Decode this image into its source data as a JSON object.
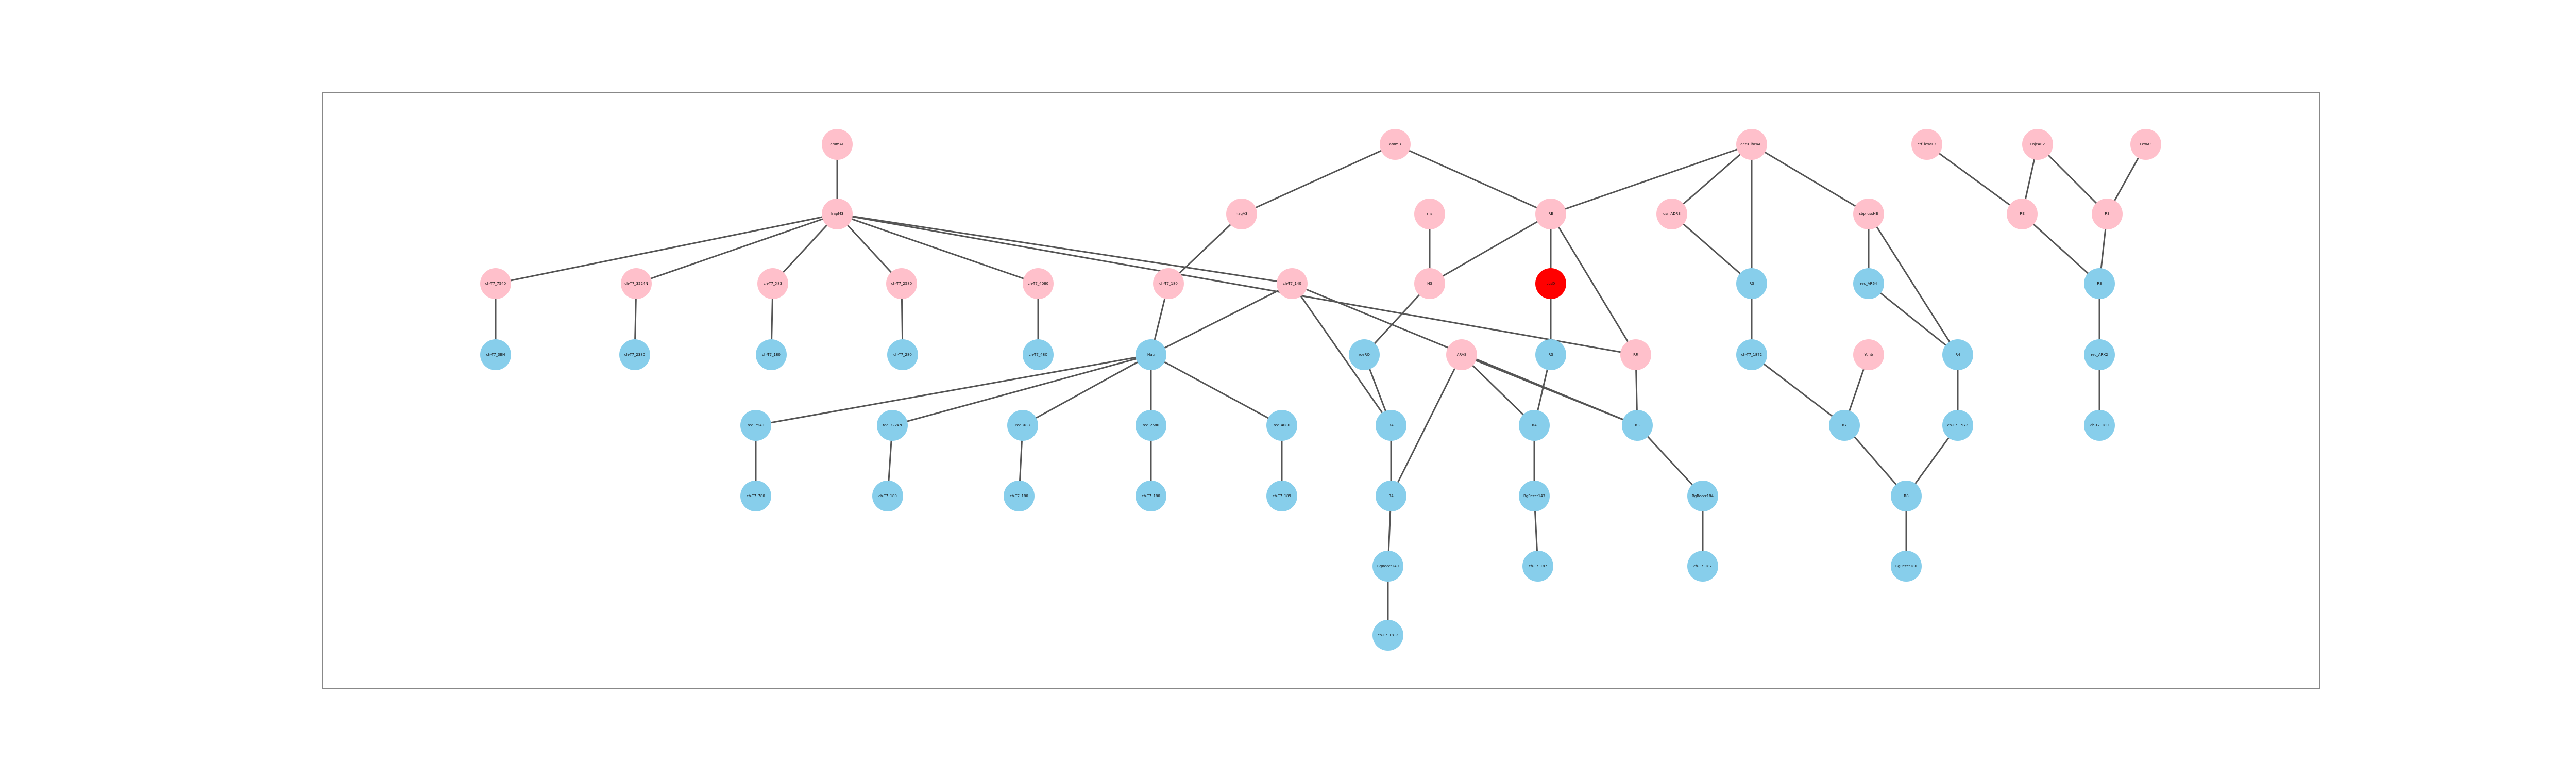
{
  "colors": {
    "background": "#ffffff",
    "frame": "#888888",
    "edge": "#555555",
    "pink": "#ffc0cb",
    "blue": "#87ceeb",
    "red": "#ff0000"
  },
  "graph": {
    "nodes": [
      {
        "id": "n_top_left",
        "label": "ammAE",
        "color": "pink"
      },
      {
        "id": "n_hub_left",
        "label": "lrapM3",
        "color": "pink"
      },
      {
        "id": "n_top_mid",
        "label": "ammB",
        "color": "pink"
      },
      {
        "id": "n_top_right",
        "label": "aerB_lhcaAE",
        "color": "pink"
      },
      {
        "id": "n_top_r1",
        "label": "crf_lexaE3",
        "color": "pink"
      },
      {
        "id": "n_top_r2",
        "label": "FnjcAR2",
        "color": "pink"
      },
      {
        "id": "n_top_r3",
        "label": "LexM3",
        "color": "pink"
      },
      {
        "id": "n_r2_hag",
        "label": "hagA3",
        "color": "pink"
      },
      {
        "id": "n_r2_rhs",
        "label": "rhs",
        "color": "pink"
      },
      {
        "id": "n_r2_re",
        "label": "RE",
        "color": "pink"
      },
      {
        "id": "n_r2_csgd",
        "label": "osr_ADR3",
        "color": "pink"
      },
      {
        "id": "n_r2_sbp",
        "label": "sbp_cssHB",
        "color": "pink"
      },
      {
        "id": "n_r2_r1",
        "label": "RE",
        "color": "pink"
      },
      {
        "id": "n_r2_r2",
        "label": "R3",
        "color": "pink"
      },
      {
        "id": "n_r3_a",
        "label": "ch-T7_7540",
        "color": "pink"
      },
      {
        "id": "n_r3_b",
        "label": "ch-T7_3224N",
        "color": "pink"
      },
      {
        "id": "n_r3_c",
        "label": "ch-T7_X83",
        "color": "pink"
      },
      {
        "id": "n_r3_d",
        "label": "ch-T7_2580",
        "color": "pink"
      },
      {
        "id": "n_r3_e",
        "label": "ch-T7_4080",
        "color": "pink"
      },
      {
        "id": "n_r3_f",
        "label": "ch-T7_180",
        "color": "pink"
      },
      {
        "id": "n_r3_g",
        "label": "ch-T7_140",
        "color": "pink"
      },
      {
        "id": "n_r3_h",
        "label": "H3",
        "color": "pink"
      },
      {
        "id": "n_r3_red",
        "label": "ccsD",
        "color": "red"
      },
      {
        "id": "n_r3_k",
        "label": "R3",
        "color": "blue"
      },
      {
        "id": "n_r3_l",
        "label": "rec_AR64",
        "color": "blue"
      },
      {
        "id": "n_r3_m",
        "label": "R3",
        "color": "blue"
      },
      {
        "id": "n_r4_a",
        "label": "ch-T7_3EN",
        "color": "blue"
      },
      {
        "id": "n_r4_b",
        "label": "ch-T7_2380",
        "color": "blue"
      },
      {
        "id": "n_r4_c",
        "label": "ch-T7_180",
        "color": "blue"
      },
      {
        "id": "n_r4_d",
        "label": "ch-T7_280",
        "color": "blue"
      },
      {
        "id": "n_r4_e",
        "label": "ch-T7_48C",
        "color": "blue"
      },
      {
        "id": "n_r4_hub",
        "label": "Hau",
        "color": "blue"
      },
      {
        "id": "n_r4_g",
        "label": "roeRO",
        "color": "blue"
      },
      {
        "id": "n_r4_h",
        "label": "ARAS",
        "color": "pink"
      },
      {
        "id": "n_r4_i",
        "label": "R3",
        "color": "blue"
      },
      {
        "id": "n_r4_j",
        "label": "RR",
        "color": "pink"
      },
      {
        "id": "n_r4_k",
        "label": "ch-T7_1872",
        "color": "blue"
      },
      {
        "id": "n_r4_l",
        "label": "Yuhb",
        "color": "pink"
      },
      {
        "id": "n_r4_m",
        "label": "R4",
        "color": "blue"
      },
      {
        "id": "n_r4_n",
        "label": "rec_ARX2",
        "color": "blue"
      },
      {
        "id": "n_r5_a",
        "label": "rec_7540",
        "color": "blue"
      },
      {
        "id": "n_r5_b",
        "label": "rec_3224N",
        "color": "blue"
      },
      {
        "id": "n_r5_c",
        "label": "rec_X83",
        "color": "blue"
      },
      {
        "id": "n_r5_d",
        "label": "rec_2580",
        "color": "blue"
      },
      {
        "id": "n_r5_e",
        "label": "rec_4080",
        "color": "blue"
      },
      {
        "id": "n_r5_f",
        "label": "R4",
        "color": "blue"
      },
      {
        "id": "n_r5_g",
        "label": "R4",
        "color": "blue"
      },
      {
        "id": "n_r5_h",
        "label": "R3",
        "color": "blue"
      },
      {
        "id": "n_r5_i",
        "label": "R7",
        "color": "blue"
      },
      {
        "id": "n_r5_j",
        "label": "ch-T7_1972",
        "color": "blue"
      },
      {
        "id": "n_r5_k",
        "label": "ch-T7_180",
        "color": "blue"
      },
      {
        "id": "n_r6_a",
        "label": "ch-T7_780",
        "color": "blue"
      },
      {
        "id": "n_r6_b",
        "label": "ch-T7_180",
        "color": "blue"
      },
      {
        "id": "n_r6_c",
        "label": "ch-T7_180",
        "color": "blue"
      },
      {
        "id": "n_r6_d",
        "label": "ch-T7_180",
        "color": "blue"
      },
      {
        "id": "n_r6_e",
        "label": "ch-T7_189",
        "color": "blue"
      },
      {
        "id": "n_r6_f",
        "label": "R4",
        "color": "blue"
      },
      {
        "id": "n_r6_g",
        "label": "BgReccr143",
        "color": "blue"
      },
      {
        "id": "n_r6_h",
        "label": "BgReccr184",
        "color": "blue"
      },
      {
        "id": "n_r6_i",
        "label": "R8",
        "color": "blue"
      },
      {
        "id": "n_r7_a",
        "label": "BgReccr140",
        "color": "blue"
      },
      {
        "id": "n_r7_b",
        "label": "ch-T7_187",
        "color": "blue"
      },
      {
        "id": "n_r7_c",
        "label": "ch-T7_187",
        "color": "blue"
      },
      {
        "id": "n_r7_d",
        "label": "BgReccr180",
        "color": "blue"
      },
      {
        "id": "n_r8_a",
        "label": "ch-T7_1812",
        "color": "blue"
      }
    ],
    "edges": [
      [
        "n_top_left",
        "n_hub_left"
      ],
      [
        "n_hub_left",
        "n_r3_a"
      ],
      [
        "n_hub_left",
        "n_r3_b"
      ],
      [
        "n_hub_left",
        "n_r3_c"
      ],
      [
        "n_hub_left",
        "n_r3_d"
      ],
      [
        "n_hub_left",
        "n_r3_e"
      ],
      [
        "n_hub_left",
        "n_r3_g"
      ],
      [
        "n_hub_left",
        "n_r4_j"
      ],
      [
        "n_r3_a",
        "n_r4_a"
      ],
      [
        "n_r3_b",
        "n_r4_b"
      ],
      [
        "n_r3_c",
        "n_r4_c"
      ],
      [
        "n_r3_d",
        "n_r4_d"
      ],
      [
        "n_r3_e",
        "n_r4_e"
      ],
      [
        "n_top_mid",
        "n_r2_hag"
      ],
      [
        "n_top_mid",
        "n_r2_re"
      ],
      [
        "n_r2_hag",
        "n_r3_f"
      ],
      [
        "n_r3_f",
        "n_r4_hub"
      ],
      [
        "n_r3_g",
        "n_r4_hub"
      ],
      [
        "n_r3_g",
        "n_r5_f"
      ],
      [
        "n_r3_g",
        "n_r5_h"
      ],
      [
        "n_r4_hub",
        "n_r5_a"
      ],
      [
        "n_r4_hub",
        "n_r5_b"
      ],
      [
        "n_r4_hub",
        "n_r5_c"
      ],
      [
        "n_r4_hub",
        "n_r5_d"
      ],
      [
        "n_r4_hub",
        "n_r5_e"
      ],
      [
        "n_r5_a",
        "n_r6_a"
      ],
      [
        "n_r5_b",
        "n_r6_b"
      ],
      [
        "n_r5_c",
        "n_r6_c"
      ],
      [
        "n_r5_d",
        "n_r6_d"
      ],
      [
        "n_r5_e",
        "n_r6_e"
      ],
      [
        "n_r2_rhs",
        "n_r3_h"
      ],
      [
        "n_r2_re",
        "n_r3_h"
      ],
      [
        "n_r2_re",
        "n_r3_red"
      ],
      [
        "n_r2_re",
        "n_r4_j"
      ],
      [
        "n_r3_h",
        "n_r4_g"
      ],
      [
        "n_r4_g",
        "n_r5_f"
      ],
      [
        "n_r3_red",
        "n_r4_i"
      ],
      [
        "n_r4_i",
        "n_r5_g"
      ],
      [
        "n_r4_h",
        "n_r5_g"
      ],
      [
        "n_r4_h",
        "n_r5_h"
      ],
      [
        "n_r4_h",
        "n_r6_f"
      ],
      [
        "n_r5_f",
        "n_r6_f"
      ],
      [
        "n_r6_f",
        "n_r7_a"
      ],
      [
        "n_r7_a",
        "n_r8_a"
      ],
      [
        "n_r5_g",
        "n_r6_g"
      ],
      [
        "n_r6_g",
        "n_r7_b"
      ],
      [
        "n_r4_j",
        "n_r5_h"
      ],
      [
        "n_r5_h",
        "n_r6_h"
      ],
      [
        "n_r6_h",
        "n_r7_c"
      ],
      [
        "n_top_right",
        "n_r2_csgd"
      ],
      [
        "n_top_right",
        "n_r2_sbp"
      ],
      [
        "n_top_right",
        "n_r2_re"
      ],
      [
        "n_top_right",
        "n_r3_k"
      ],
      [
        "n_r2_csgd",
        "n_r3_k"
      ],
      [
        "n_r3_k",
        "n_r4_k"
      ],
      [
        "n_r4_k",
        "n_r5_i"
      ],
      [
        "n_r4_l",
        "n_r5_i"
      ],
      [
        "n_r2_sbp",
        "n_r3_l"
      ],
      [
        "n_r2_sbp",
        "n_r4_m"
      ],
      [
        "n_r3_l",
        "n_r4_m"
      ],
      [
        "n_r4_m",
        "n_r5_j"
      ],
      [
        "n_r5_j",
        "n_r6_i"
      ],
      [
        "n_r5_i",
        "n_r6_i"
      ],
      [
        "n_r6_i",
        "n_r7_d"
      ],
      [
        "n_top_r1",
        "n_r2_r1"
      ],
      [
        "n_top_r2",
        "n_r2_r1"
      ],
      [
        "n_top_r2",
        "n_r2_r2"
      ],
      [
        "n_top_r3",
        "n_r2_r2"
      ],
      [
        "n_r2_r1",
        "n_r3_m"
      ],
      [
        "n_r2_r2",
        "n_r3_m"
      ],
      [
        "n_r3_m",
        "n_r4_n"
      ],
      [
        "n_r4_n",
        "n_r5_k"
      ]
    ]
  }
}
